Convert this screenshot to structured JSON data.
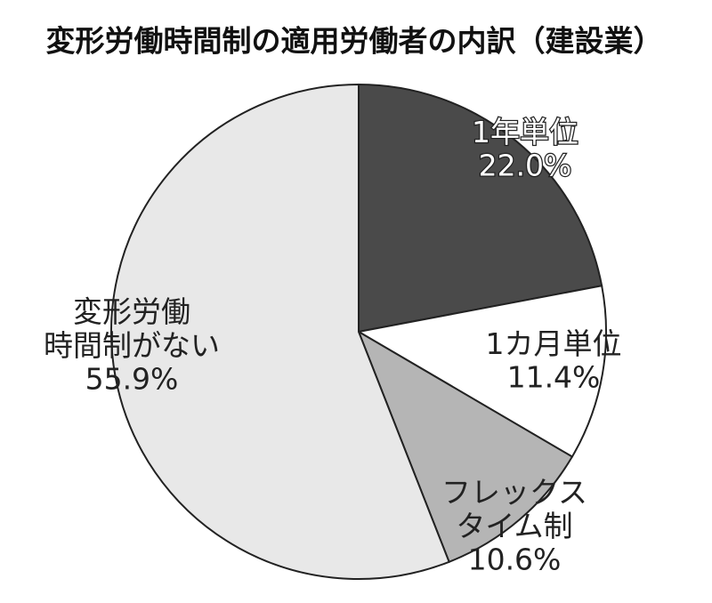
{
  "chart_data": {
    "type": "pie",
    "title": "変形労働時間制の適用労働者の内訳（建設業）",
    "categories": [
      "1年単位",
      "1カ月単位",
      "フレックス\nタイム制",
      "変形労働\n時間制がない"
    ],
    "values": [
      22.0,
      11.4,
      10.6,
      55.9
    ],
    "value_labels": [
      "22.0%",
      "11.4%",
      "10.6%",
      "55.9%"
    ],
    "colors": [
      "#4a4a4a",
      "#ffffff",
      "#b5b5b5",
      "#e8e8e8"
    ]
  }
}
